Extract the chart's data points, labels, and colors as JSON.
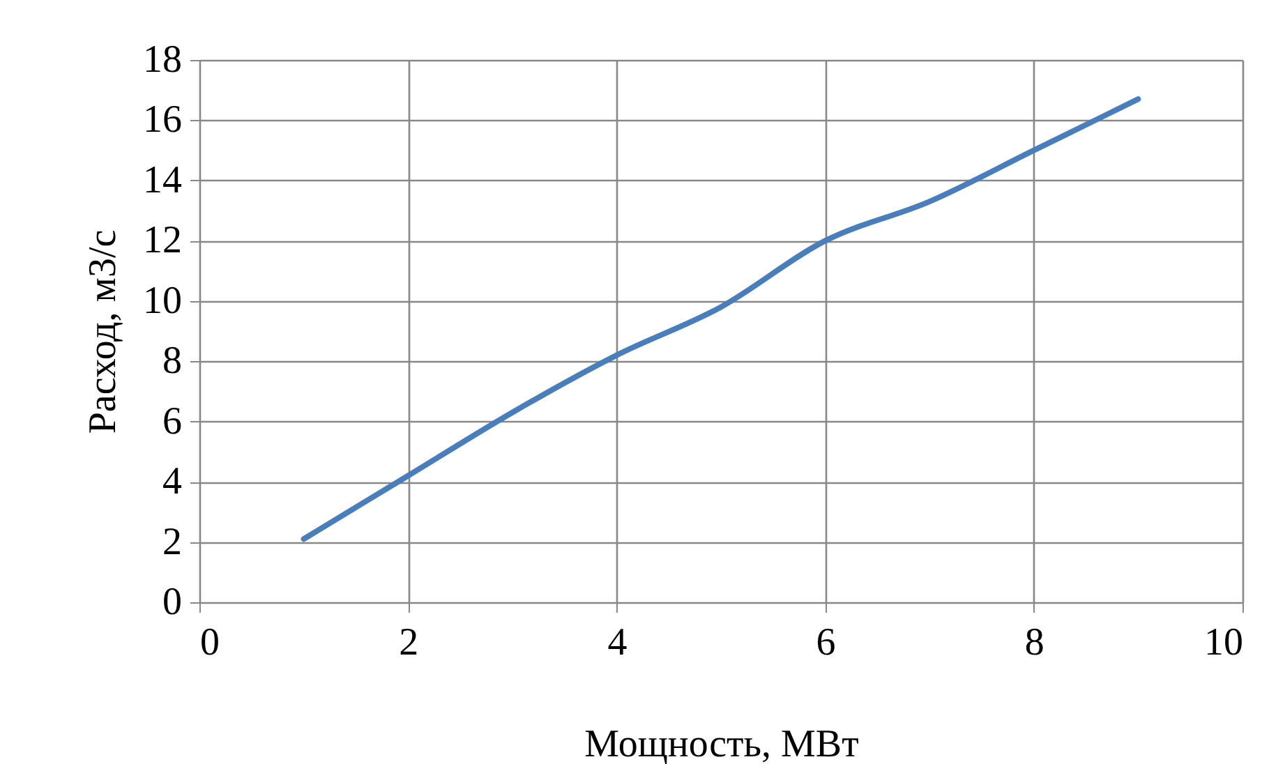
{
  "chart_data": {
    "type": "line",
    "xlabel": "Мощность, МВт",
    "ylabel": "Расход, м3/с",
    "x": [
      1,
      2,
      3,
      4,
      5,
      6,
      7,
      8,
      9
    ],
    "series": [
      {
        "color": "#4a7ebb",
        "values": [
          2.1,
          4.2,
          6.3,
          8.2,
          9.8,
          12.0,
          13.3,
          15.0,
          16.7
        ]
      }
    ],
    "xlim": [
      0,
      10
    ],
    "xticks": [
      0,
      2,
      4,
      6,
      8,
      10
    ],
    "ylim": [
      0,
      18
    ],
    "yticks": [
      0,
      2,
      4,
      6,
      8,
      10,
      12,
      14,
      16,
      18
    ],
    "grid": true,
    "legend": false,
    "marker": "none",
    "line_style": "solid"
  }
}
